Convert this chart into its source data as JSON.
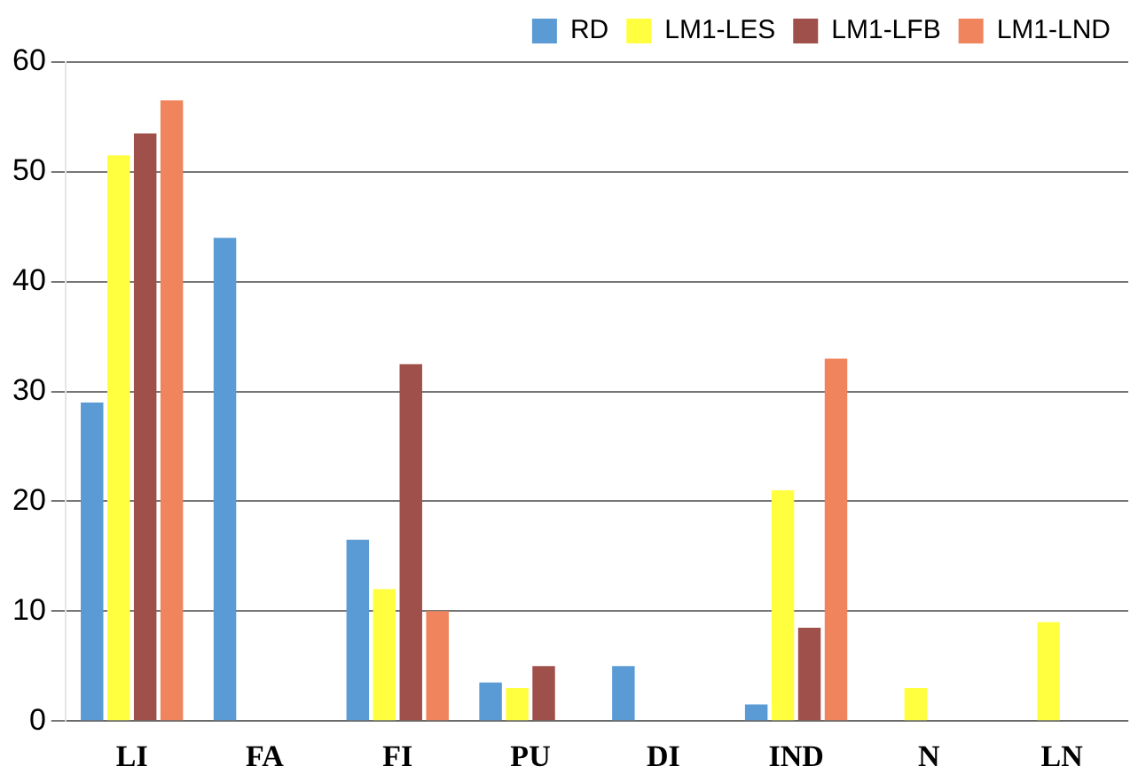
{
  "chart_data": {
    "type": "bar",
    "categories": [
      "LI",
      "FA",
      "FI",
      "PU",
      "DI",
      "IND",
      "N",
      "LN"
    ],
    "series": [
      {
        "name": "RD",
        "color": "#5b9bd5",
        "values": [
          29,
          44,
          16.5,
          3.5,
          5,
          1.5,
          null,
          null
        ]
      },
      {
        "name": "LM1-LES",
        "color": "#ffff40",
        "values": [
          51.5,
          null,
          12,
          3,
          null,
          21,
          3,
          9
        ]
      },
      {
        "name": "LM1-LFB",
        "color": "#a0504a",
        "values": [
          53.5,
          null,
          32.5,
          5,
          null,
          8.5,
          null,
          null
        ]
      },
      {
        "name": "LM1-LND",
        "color": "#f0845c",
        "values": [
          56.5,
          null,
          10,
          null,
          null,
          33,
          null,
          null
        ]
      }
    ],
    "ylim": [
      0,
      60
    ],
    "yticks": [
      0,
      10,
      20,
      30,
      40,
      50,
      60
    ],
    "grid": "y",
    "legend": "top right"
  }
}
